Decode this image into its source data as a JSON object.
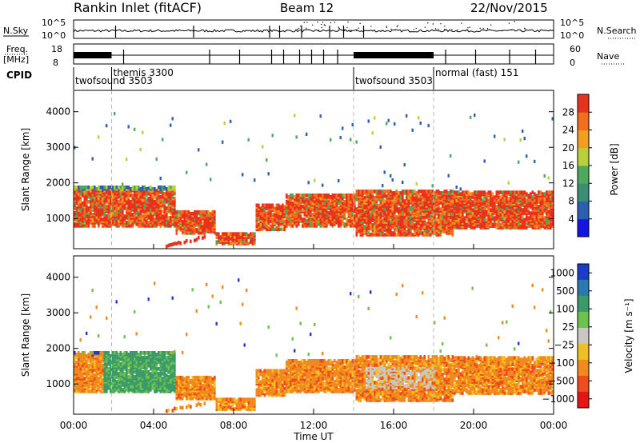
{
  "header": {
    "title": "Rankin Inlet (fitACF)",
    "beam": "Beam 12",
    "date": "22/Nov/2015"
  },
  "top_panels": {
    "nsky_label": "N.Sky",
    "nsearch_label": "N.Search",
    "nsky_ticks": [
      "10^5",
      "10^0"
    ],
    "nsky_right_ticks": [
      "10^5",
      "10^0"
    ],
    "freq_label_line1": "Freq.",
    "freq_label_line2": "[MHz]",
    "freq_ticks": [
      "18",
      "8"
    ],
    "nave_label": "Nave",
    "nave_ticks": [
      "60",
      "0"
    ],
    "cpid_label": "CPID",
    "cpid_segments": [
      {
        "label": "twofsound 3503",
        "start_hour": 0.0,
        "end_hour": 1.9
      },
      {
        "label": "themis 3300",
        "start_hour": 1.9,
        "end_hour": 14.0
      },
      {
        "label": "twofsound 3503",
        "start_hour": 14.0,
        "end_hour": 18.0
      },
      {
        "label": "normal (fast) 151",
        "start_hour": 18.0,
        "end_hour": 24.0
      }
    ]
  },
  "chart_data": [
    {
      "type": "heatmap",
      "name": "power-panel",
      "ylabel": "Slant Range [km]",
      "ylim": [
        150,
        4600
      ],
      "yticks": [
        "1000",
        "2000",
        "3000",
        "4000"
      ],
      "xlim": [
        0,
        24
      ],
      "colorbar_label": "Power [dB]",
      "colorbar_ticks": [
        "4",
        "8",
        "12",
        "16",
        "20",
        "24",
        "28"
      ],
      "colorbar_range": [
        0,
        32
      ],
      "colors": [
        "#1414e6",
        "#2b5fb0",
        "#3d8c76",
        "#4fa85c",
        "#b8d13a",
        "#f0a01e",
        "#f06e1e",
        "#e8321e"
      ],
      "dashed_markers_hour": [
        1.9,
        14.0,
        18.0
      ]
    },
    {
      "type": "heatmap",
      "name": "velocity-panel",
      "ylabel": "Slant Range [km]",
      "ylim": [
        150,
        4600
      ],
      "yticks": [
        "1000",
        "2000",
        "3000",
        "4000"
      ],
      "xlim": [
        0,
        24
      ],
      "xticks": [
        "00:00",
        "04:00",
        "08:00",
        "12:00",
        "16:00",
        "20:00",
        "00:00"
      ],
      "xlabel": "Time UT",
      "colorbar_label": "Velocity [m s⁻¹]",
      "colorbar_ticks": [
        "1000",
        "500",
        "100",
        "25",
        "−25",
        "−100",
        "−500",
        "−1000"
      ],
      "colors": [
        "#1a3cc8",
        "#2a7ab0",
        "#3c9a6a",
        "#6cc24a",
        "#c8c8c0",
        "#f0c020",
        "#f08a1e",
        "#f04a1e",
        "#e81414"
      ],
      "dashed_markers_hour": [
        1.9,
        14.0,
        18.0
      ]
    }
  ]
}
